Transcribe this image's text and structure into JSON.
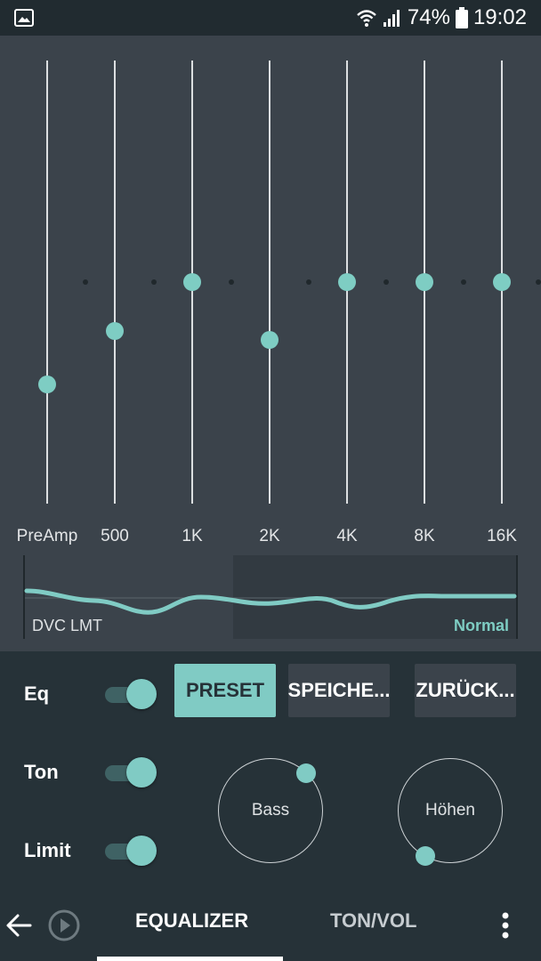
{
  "status_bar": {
    "battery": "74%",
    "time": "19:02",
    "icons": [
      "gallery-icon",
      "wifi-icon",
      "signal-icon",
      "battery-icon"
    ]
  },
  "equalizer": {
    "bands": [
      {
        "label": "PreAmp",
        "level": 0.27
      },
      {
        "label": "500",
        "level": 0.39
      },
      {
        "label": "1K",
        "level": 0.5
      },
      {
        "label": "2K",
        "level": 0.37
      },
      {
        "label": "4K",
        "level": 0.5
      },
      {
        "label": "8K",
        "level": 0.5
      },
      {
        "label": "16K",
        "level": 0.5
      }
    ],
    "dvc_label": "DVC LMT",
    "dvc_mode": "Normal",
    "accent_color": "#80cbc4"
  },
  "controls": {
    "toggles": [
      {
        "label": "Eq",
        "on": true
      },
      {
        "label": "Ton",
        "on": true
      },
      {
        "label": "Limit",
        "on": true
      }
    ],
    "buttons": {
      "preset": "PRESET",
      "save": "SPEICHE...",
      "reset": "ZURÜCK..."
    },
    "dials": [
      {
        "label": "Bass",
        "level": 0.6
      },
      {
        "label": "Höhen",
        "level": 0.2
      }
    ]
  },
  "bottom_nav": {
    "back_icon": "arrow-left-icon",
    "play_icon": "play-circle-icon",
    "tabs": [
      "EQUALIZER",
      "TON/VOL"
    ],
    "active_tab": "EQUALIZER",
    "menu_icon": "more-vertical-icon"
  }
}
